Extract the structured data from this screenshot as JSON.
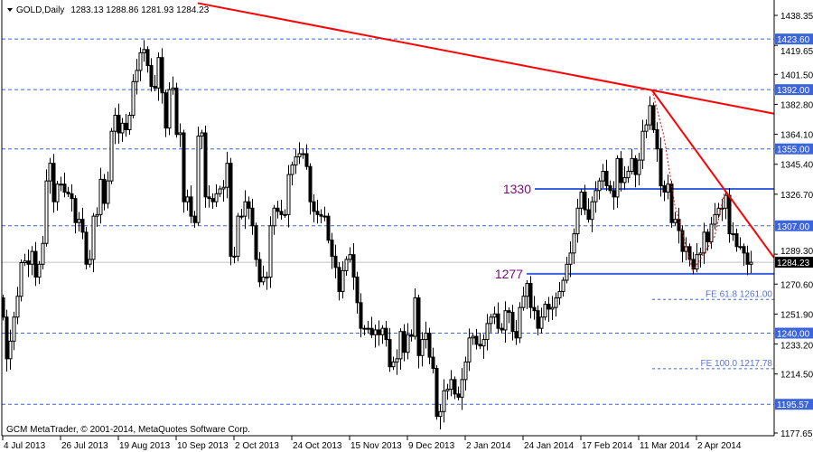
{
  "header": {
    "symbol": "GOLD,Daily",
    "ohlc": "1283.13 1288.86 1281.93 1284.23"
  },
  "footer": {
    "copyright": "GCM MetaTrader, © 2001-2014, MetaQuotes Software Corp."
  },
  "colors": {
    "candle": "#000000",
    "trendline": "#ff0000",
    "level": "#3c64dc",
    "level_label_bg": "#3c64dc",
    "current_price_bg": "#000000",
    "fe_text": "#5a6fe0",
    "annotation": "#7a0a7a",
    "current_price_line": "#c0c0c0"
  },
  "chart_data": {
    "type": "candlestick",
    "ylim": [
      1177.65,
      1438.35
    ],
    "price_ticks": [
      "1438.35",
      "1419.65",
      "1401.50",
      "1382.80",
      "1364.10",
      "1345.40",
      "1326.70",
      "1289.30",
      "1270.60",
      "1251.90",
      "1233.20",
      "1214.50",
      "1177.65"
    ],
    "time_labels": [
      "4 Jul 2013",
      "26 Jul 2013",
      "19 Aug 2013",
      "10 Sep 2013",
      "2 Oct 2013",
      "24 Oct 2013",
      "15 Nov 2013",
      "9 Dec 2013",
      "2 Jan 2014",
      "24 Jan 2014",
      "17 Feb 2014",
      "11 Mar 2014",
      "2 Apr 2014"
    ],
    "first_open": 1262,
    "closes": [
      1250,
      1224,
      1235,
      1250,
      1263,
      1284,
      1285,
      1283,
      1291,
      1275,
      1283,
      1296,
      1335,
      1346,
      1322,
      1333,
      1333,
      1328,
      1327,
      1324,
      1309,
      1311,
      1303,
      1283,
      1286,
      1313,
      1314,
      1336,
      1321,
      1335,
      1366,
      1376,
      1365,
      1371,
      1367,
      1376,
      1397,
      1404,
      1415,
      1417,
      1407,
      1394,
      1393,
      1412,
      1390,
      1368,
      1392,
      1393,
      1364,
      1365,
      1322,
      1325,
      1313,
      1309,
      1363,
      1365,
      1325,
      1324,
      1322,
      1327,
      1330,
      1331,
      1346,
      1288,
      1288,
      1313,
      1313,
      1322,
      1318,
      1307,
      1286,
      1272,
      1275,
      1275,
      1307,
      1318,
      1316,
      1314,
      1314,
      1339,
      1345,
      1350,
      1352,
      1352,
      1344,
      1322,
      1316,
      1314,
      1313,
      1313,
      1298,
      1288,
      1281,
      1266,
      1279,
      1286,
      1289,
      1275,
      1259,
      1243,
      1243,
      1243,
      1239,
      1242,
      1239,
      1243,
      1236,
      1219,
      1222,
      1224,
      1241,
      1228,
      1239,
      1238,
      1262,
      1226,
      1236,
      1240,
      1225,
      1218,
      1188,
      1191,
      1204,
      1205,
      1211,
      1202,
      1200,
      1211,
      1222,
      1237,
      1238,
      1233,
      1232,
      1236,
      1246,
      1250,
      1252,
      1243,
      1242,
      1254,
      1253,
      1241,
      1237,
      1256,
      1263,
      1271,
      1256,
      1254,
      1243,
      1250,
      1258,
      1255,
      1256,
      1262,
      1266,
      1273,
      1283,
      1290,
      1302,
      1318,
      1328,
      1317,
      1311,
      1322,
      1329,
      1335,
      1341,
      1332,
      1329,
      1325,
      1349,
      1334,
      1337,
      1341,
      1349,
      1339,
      1348,
      1366,
      1370,
      1382,
      1367,
      1355,
      1332,
      1328,
      1333,
      1309,
      1311,
      1304,
      1291,
      1294,
      1286,
      1280,
      1289,
      1290,
      1303,
      1297,
      1308,
      1314,
      1318,
      1318,
      1326,
      1302,
      1302,
      1294,
      1294,
      1290,
      1283,
      1284.23
    ],
    "current_price": {
      "value": 1284.23,
      "label": "1284.23"
    },
    "levels": [
      {
        "value": 1423.6,
        "label": "1423.60"
      },
      {
        "value": 1392.0,
        "label": "1392.00"
      },
      {
        "value": 1355.0,
        "label": "1355.00"
      },
      {
        "value": 1307.0,
        "label": "1307.00"
      },
      {
        "value": 1240.0,
        "label": "1240.00"
      },
      {
        "value": 1195.57,
        "label": "1195.57"
      }
    ],
    "fe_levels": [
      {
        "value": 1261.0,
        "label": "FE 61.8 1261.00"
      },
      {
        "value": 1217.78,
        "label": "FE 100.0 1217.78"
      }
    ],
    "horizontal_lines": [
      {
        "value": 1330,
        "label": "1330"
      },
      {
        "value": 1277,
        "label": "1277"
      }
    ],
    "trendlines": [
      {
        "from": [
          54,
          1446
        ],
        "to": [
          213.5,
          1377
        ],
        "style": "solid"
      },
      {
        "from": [
          179.75,
          1391.5
        ],
        "to": [
          213.5,
          1287
        ],
        "style": "solid"
      },
      {
        "points": [
          [
            179.75,
            1391.5
          ],
          [
            183,
            1363
          ],
          [
            186,
            1320
          ],
          [
            191,
            1279
          ],
          [
            197,
            1300
          ],
          [
            200,
            1330
          ]
        ],
        "style": "dotted"
      }
    ]
  }
}
